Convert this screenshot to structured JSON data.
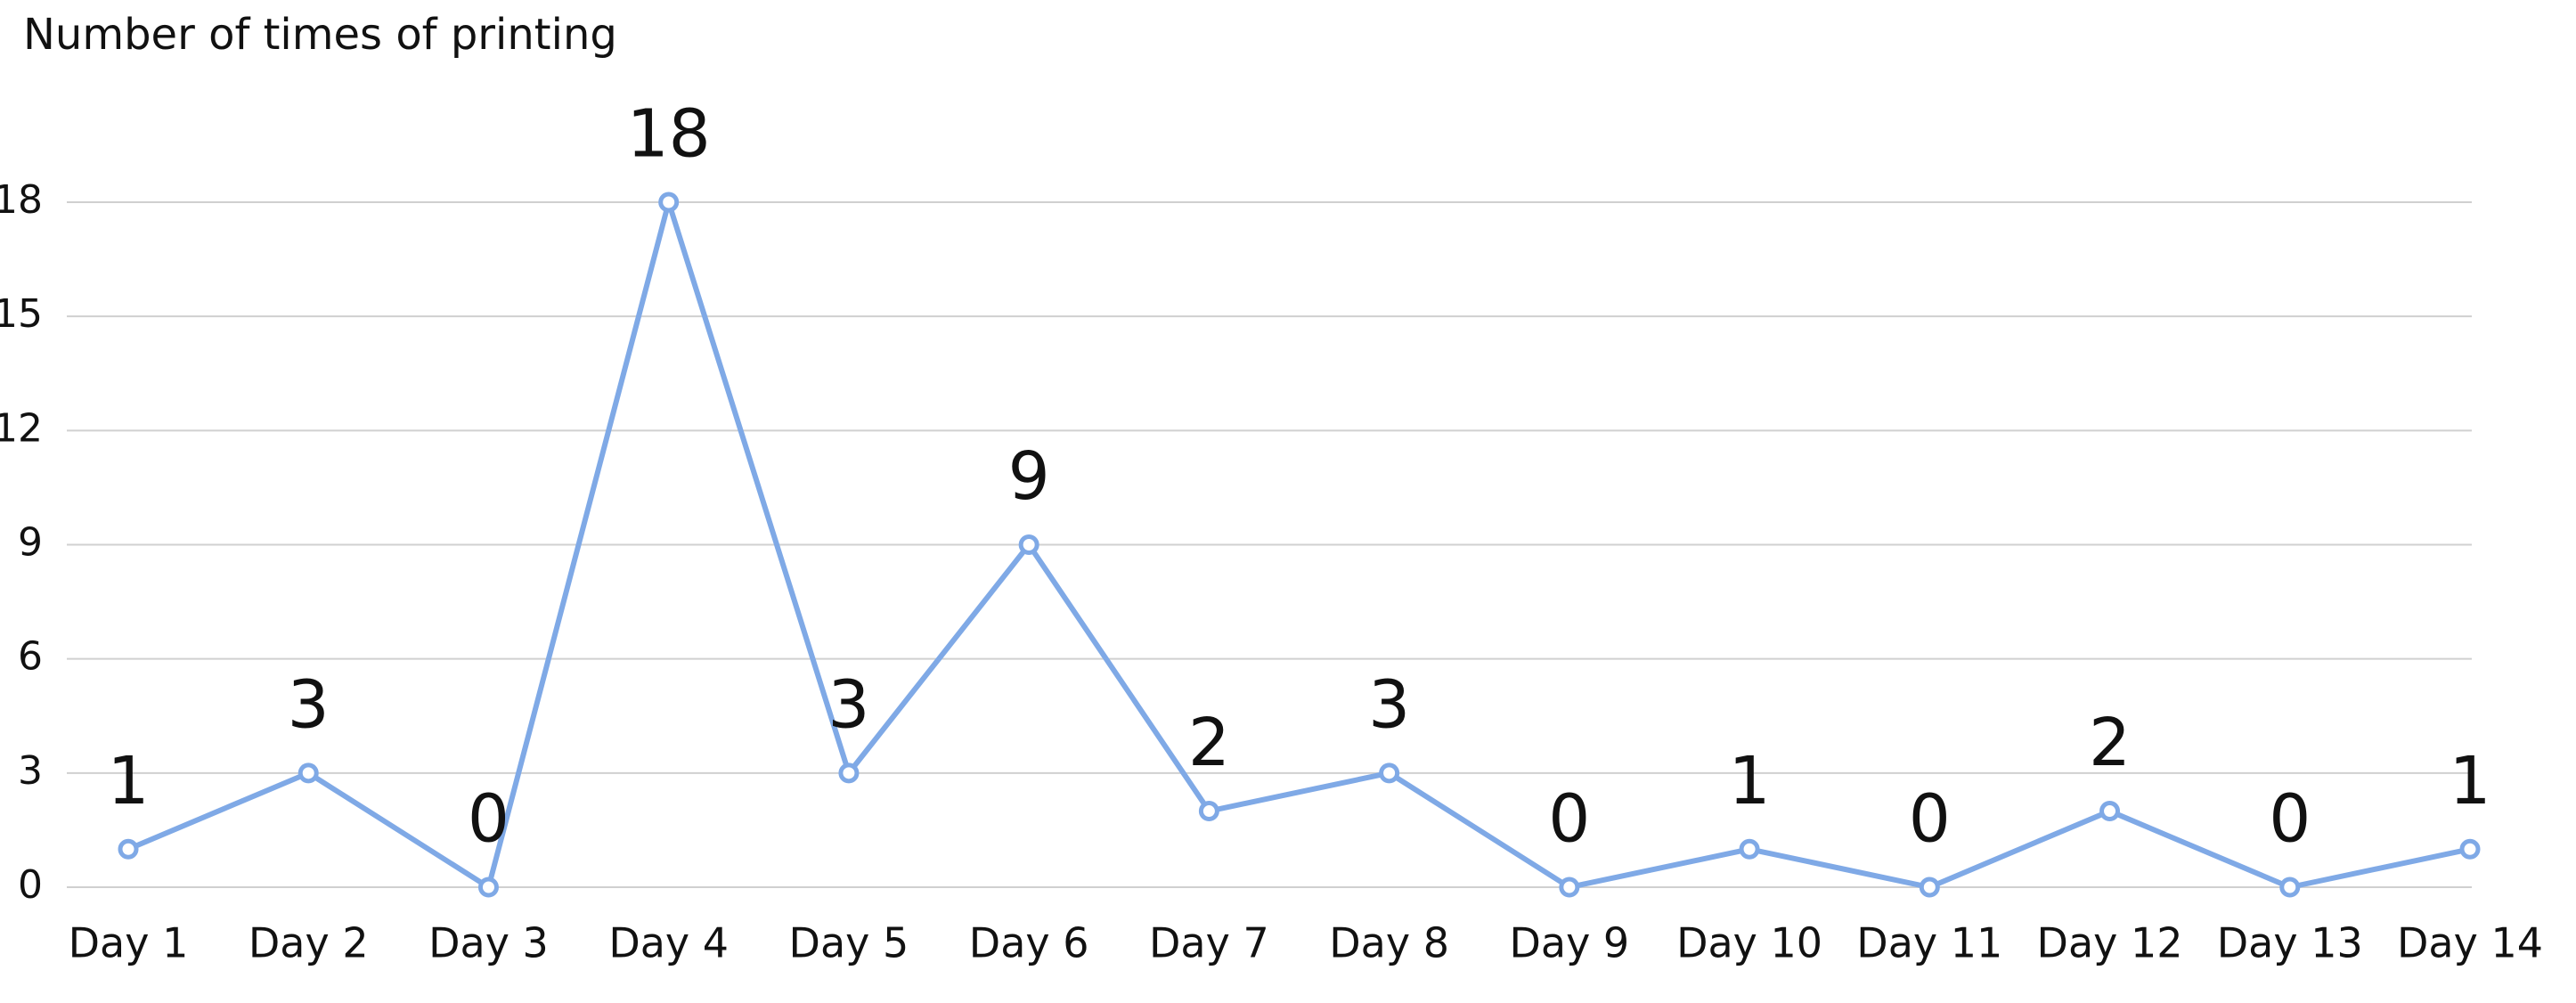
{
  "chart_data": {
    "type": "line",
    "title": "Number of times of printing",
    "categories": [
      "Day 1",
      "Day 2",
      "Day 3",
      "Day 4",
      "Day 5",
      "Day 6",
      "Day 7",
      "Day 8",
      "Day 9",
      "Day 10",
      "Day 11",
      "Day 12",
      "Day 13",
      "Day 14"
    ],
    "values": [
      1,
      3,
      0,
      18,
      3,
      9,
      2,
      3,
      0,
      1,
      0,
      2,
      0,
      1
    ],
    "color": "#7fa9e6",
    "ylim": [
      0,
      18
    ],
    "yticks": [
      0,
      3,
      6,
      9,
      12,
      15,
      18
    ],
    "grid": true
  }
}
